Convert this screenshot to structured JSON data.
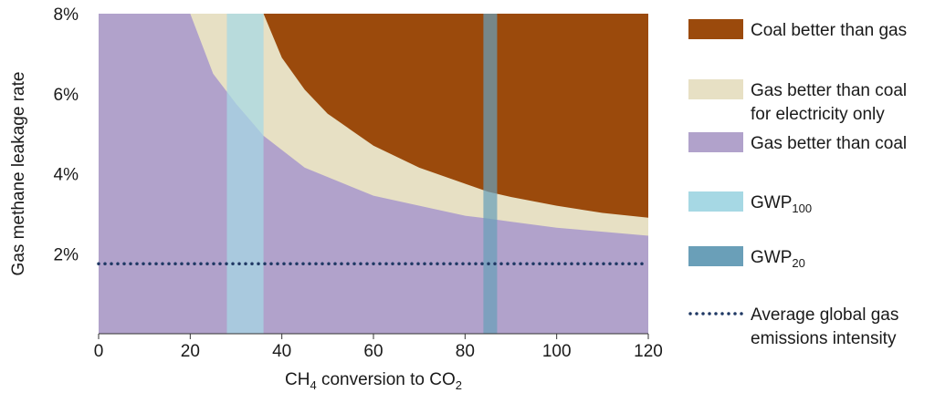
{
  "chart_data": {
    "type": "area",
    "title": "",
    "xlabel": {
      "main": "CH",
      "sub1": "4",
      "mid": " conversion to CO",
      "sub2": "2"
    },
    "ylabel": "Gas methane leakage rate",
    "xlim": [
      0,
      120
    ],
    "ylim": [
      0,
      8
    ],
    "x_ticks": [
      {
        "value": 0,
        "label": "0"
      },
      {
        "value": 20,
        "label": "20"
      },
      {
        "value": 40,
        "label": "40"
      },
      {
        "value": 60,
        "label": "60"
      },
      {
        "value": 80,
        "label": "80"
      },
      {
        "value": 100,
        "label": "100"
      },
      {
        "value": 120,
        "label": "120"
      }
    ],
    "y_ticks": [
      {
        "value": 2,
        "label": "2%"
      },
      {
        "value": 4,
        "label": "4%"
      },
      {
        "value": 6,
        "label": "6%"
      },
      {
        "value": 8,
        "label": "8%"
      }
    ],
    "grid": false,
    "legend_position": "right",
    "thresholds": {
      "electricity_only": {
        "x": [
          20,
          25,
          30,
          36,
          45,
          60,
          70,
          80,
          85,
          90,
          100,
          110,
          120
        ],
        "y": [
          8.0,
          6.5,
          5.75,
          4.95,
          4.15,
          3.45,
          3.2,
          2.95,
          2.88,
          2.8,
          2.65,
          2.55,
          2.45
        ]
      },
      "coal_better": {
        "x": [
          36,
          40,
          45,
          50,
          60,
          70,
          80,
          85,
          90,
          100,
          110,
          120
        ],
        "y": [
          8.0,
          6.9,
          6.1,
          5.5,
          4.7,
          4.15,
          3.75,
          3.55,
          3.42,
          3.2,
          3.02,
          2.9
        ]
      }
    },
    "bands": [
      {
        "name": "GWP100",
        "x_range": [
          28,
          36
        ],
        "color": "#a6d8e4"
      },
      {
        "name": "GWP20",
        "x_range": [
          84,
          87
        ],
        "color": "#6a9fb8"
      }
    ],
    "average_line": {
      "name": "Average global gas emissions intensity",
      "y": 1.75,
      "color": "#1f3864"
    },
    "region_colors": {
      "coal_better": "#9b4a0c",
      "electricity_only": "#e7e0c4",
      "gas_better": "#b1a2cb"
    }
  },
  "legend": {
    "items": [
      {
        "key": "coal",
        "color": "#9b4a0c",
        "lines": [
          "Coal better than gas"
        ]
      },
      {
        "key": "elec",
        "color": "#e7e0c4",
        "lines": [
          "Gas better than coal",
          "for electricity only"
        ]
      },
      {
        "key": "gas",
        "color": "#b1a2cb",
        "lines": [
          "Gas better than coal"
        ]
      },
      {
        "key": "gwp100",
        "color": "#a6d8e4",
        "text": "GWP",
        "sub": "100"
      },
      {
        "key": "gwp20",
        "color": "#6a9fb8",
        "text": "GWP",
        "sub": "20"
      },
      {
        "key": "avg",
        "dotted": true,
        "color": "#1f3864",
        "lines": [
          "Average global gas",
          "emissions intensity"
        ]
      }
    ]
  }
}
